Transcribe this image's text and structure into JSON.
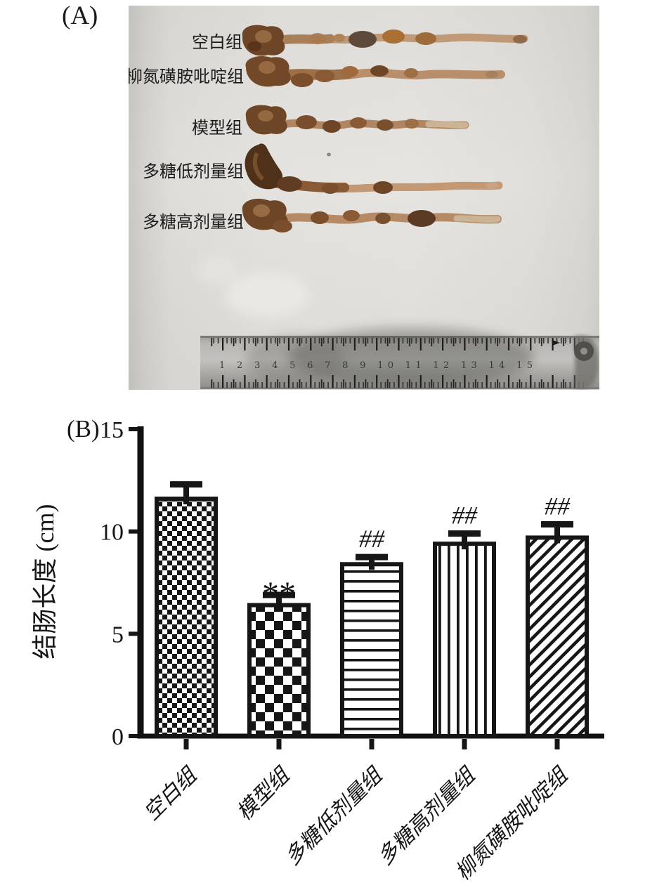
{
  "figure": {
    "panel_a_label": "(A)",
    "panel_b_label": "(B)"
  },
  "photo": {
    "description_names": [
      "colon-specimen-photo"
    ],
    "specimen_labels": [
      "空白组",
      "柳氮磺胺吡啶组",
      "模型组",
      "多糖低剂量组",
      "多糖高剂量组"
    ],
    "ruler_numbers": "1 2 3 4 5 6 7 8 9 10 11 12 13 14 15"
  },
  "chart_data": {
    "type": "bar",
    "title": "",
    "xlabel": "",
    "ylabel": "结肠长度 (cm)",
    "ylim": [
      0,
      15
    ],
    "yticks": [
      0,
      5,
      10,
      15
    ],
    "categories": [
      "空白组",
      "模型组",
      "多糖低剂量组",
      "多糖高剂量组",
      "柳氮磺胺吡啶组"
    ],
    "values": [
      11.6,
      6.4,
      8.4,
      9.4,
      9.7
    ],
    "errors": [
      0.7,
      0.5,
      0.35,
      0.5,
      0.65
    ],
    "annotations": [
      "",
      "**",
      "##",
      "##",
      "##"
    ],
    "patterns": [
      "checker-fine",
      "checker-coarse",
      "horizontal-lines",
      "vertical-lines",
      "diagonal-lines"
    ],
    "bar_fill": "#ffffff",
    "bar_stroke": "#161616",
    "grid": false,
    "legend": null
  }
}
